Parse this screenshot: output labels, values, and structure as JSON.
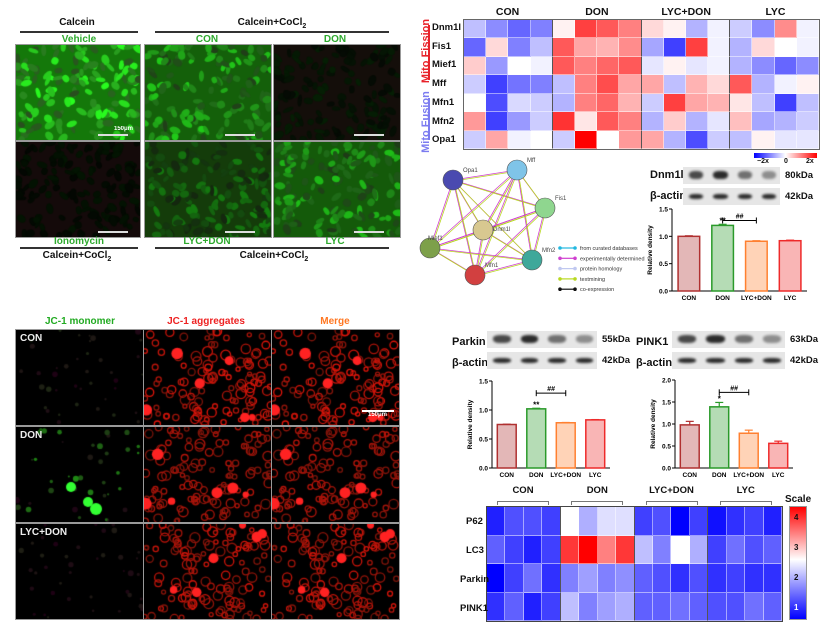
{
  "calcein_panel": {
    "top_left": "Calcein",
    "top_right": "Calcein+CoCl2",
    "bottom_left": "Calcein+CoCl2",
    "bottom_right": "Calcein+CoCl2",
    "images": [
      {
        "label": "Vehicle"
      },
      {
        "label": "CON"
      },
      {
        "label": "DON"
      },
      {
        "label": "Ionomycin"
      },
      {
        "label": "LYC+DON"
      },
      {
        "label": "LYC"
      }
    ],
    "scale_bar": "150μm"
  },
  "jc1_panel": {
    "columns": [
      "JC-1 monomer",
      "JC-1 aggregates",
      "Merge"
    ],
    "rows": [
      "CON",
      "DON",
      "LYC+DON"
    ],
    "scale_bar": "150μm",
    "colors": {
      "monomer": "#22aa22",
      "aggregates": "#ee2222",
      "merge": "#ff7722"
    }
  },
  "mito_heatmap": {
    "groups": [
      "CON",
      "DON",
      "LYC+DON",
      "LYC"
    ],
    "fission_label": "Mito Fission",
    "fusion_label": "Mito Fusion",
    "rows": [
      "Dnm1l",
      "Fis1",
      "Mief1",
      "Mff",
      "Mfn1",
      "Mfn2",
      "Opa1"
    ],
    "scale_labels": [
      "−2x",
      "0",
      "2x"
    ],
    "values": [
      [
        -0.5,
        -0.9,
        -1.2,
        -1.0,
        0.1,
        1.5,
        1.3,
        1.0,
        0.3,
        0.1,
        -0.6,
        -0.1,
        -0.4,
        -0.9,
        0.9,
        -0.1
      ],
      [
        -1.2,
        0.3,
        -1.0,
        -0.5,
        1.3,
        0.7,
        0.6,
        0.9,
        -0.7,
        -1.5,
        1.5,
        -0.1,
        -0.6,
        0.3,
        0.0,
        -0.1
      ],
      [
        0.4,
        -0.8,
        0.0,
        -0.1,
        1.3,
        1.0,
        1.2,
        1.3,
        -0.2,
        0.1,
        -0.2,
        -0.1,
        -0.6,
        -0.9,
        -1.2,
        -0.9
      ],
      [
        -0.4,
        -1.5,
        -1.1,
        -1.0,
        -0.5,
        1.0,
        1.4,
        0.7,
        0.7,
        -0.5,
        0.6,
        0.3,
        1.3,
        -0.6,
        -0.1,
        0.1
      ],
      [
        0.0,
        -1.4,
        -0.3,
        -0.4,
        -0.6,
        1.0,
        1.2,
        0.6,
        -0.4,
        1.5,
        0.7,
        0.6,
        0.2,
        -0.5,
        -1.5,
        -0.5
      ],
      [
        0.8,
        -1.5,
        -0.8,
        -0.4,
        1.6,
        0.2,
        1.3,
        1.0,
        -0.6,
        0.4,
        -0.6,
        -0.2,
        0.5,
        -0.7,
        -0.6,
        -0.4
      ],
      [
        -0.4,
        0.7,
        -0.1,
        0.0,
        -0.4,
        2.0,
        0.0,
        0.8,
        0.7,
        -0.6,
        -1.4,
        -0.4,
        -0.5,
        0.1,
        -0.2,
        -0.2
      ]
    ],
    "colors": {
      "low": "#0000ff",
      "mid": "#ffffff",
      "high": "#ff0000",
      "fission": "#e8222a",
      "fusion": "#7b7bf0"
    }
  },
  "string_network": {
    "nodes": [
      {
        "name": "Opa1",
        "color": "#4a4ab0"
      },
      {
        "name": "Mff",
        "color": "#7fc4e8"
      },
      {
        "name": "Fis1",
        "color": "#8fd68f"
      },
      {
        "name": "Dnm1l",
        "color": "#d8c890"
      },
      {
        "name": "Mief1",
        "color": "#7da04a"
      },
      {
        "name": "Mfn2",
        "color": "#3fa89a"
      },
      {
        "name": "Mfn1",
        "color": "#d24040"
      }
    ],
    "legend": [
      {
        "label": "from curated databases",
        "color": "#22b8e0"
      },
      {
        "label": "experimentally determined",
        "color": "#d040d0"
      },
      {
        "label": "protein homology",
        "color": "#c0c8f0"
      },
      {
        "label": "textmining",
        "color": "#b8d820"
      },
      {
        "label": "co-expression",
        "color": "#111111"
      }
    ]
  },
  "blots": {
    "dnm1l": {
      "label": "Dnm1l",
      "kda": "80kDa",
      "actin": "β-actin",
      "actin_kda": "42kDa"
    },
    "parkin": {
      "label": "Parkin",
      "kda": "55kDa",
      "actin": "β-actin",
      "actin_kda": "42kDa"
    },
    "pink1": {
      "label": "PINK1",
      "kda": "63kDa",
      "actin": "β-actin",
      "actin_kda": "42kDa"
    }
  },
  "chart_data": [
    {
      "type": "bar",
      "id": "dnm1l",
      "categories": [
        "CON",
        "DON",
        "LYC+DON",
        "LYC"
      ],
      "values": [
        1.0,
        1.2,
        0.91,
        0.92
      ],
      "errors": [
        0.01,
        0.02,
        0.01,
        0.01
      ],
      "ylabel": "Relative density",
      "ylim": [
        0,
        1.5
      ],
      "yticks": [
        "0.0",
        "0.5",
        "1.0",
        "1.5"
      ],
      "annotations": {
        "DON": "**",
        "bracket": "##"
      },
      "colors": [
        "#b03030",
        "#2a9a2a",
        "#ff8030",
        "#ee2a2a"
      ]
    },
    {
      "type": "bar",
      "id": "parkin",
      "categories": [
        "CON",
        "DON",
        "LYC+DON",
        "LYC"
      ],
      "values": [
        0.75,
        1.02,
        0.78,
        0.83
      ],
      "errors": [
        0.005,
        0.01,
        0.005,
        0.005
      ],
      "ylabel": "Relative density",
      "ylim": [
        0,
        1.5
      ],
      "yticks": [
        "0.0",
        "0.5",
        "1.0",
        "1.5"
      ],
      "annotations": {
        "DON": "**",
        "bracket": "##"
      },
      "colors": [
        "#b03030",
        "#2a9a2a",
        "#ff8030",
        "#ee2a2a"
      ]
    },
    {
      "type": "bar",
      "id": "pink1",
      "categories": [
        "CON",
        "DON",
        "LYC+DON",
        "LYC"
      ],
      "values": [
        0.98,
        1.39,
        0.79,
        0.56
      ],
      "errors": [
        0.08,
        0.1,
        0.07,
        0.05
      ],
      "ylabel": "Relative density",
      "ylim": [
        0,
        2.0
      ],
      "yticks": [
        "0.0",
        "0.5",
        "1.0",
        "1.5",
        "2.0"
      ],
      "annotations": {
        "DON": "*",
        "bracket": "##"
      },
      "colors": [
        "#b03030",
        "#2a9a2a",
        "#ff8030",
        "#ee2a2a"
      ]
    },
    {
      "type": "heatmap",
      "id": "autophagy",
      "groups": [
        "CON",
        "DON",
        "LYC+DON",
        "LYC"
      ],
      "rows": [
        "P62",
        "LC3",
        "Parkin",
        "PINK1"
      ],
      "scale_title": "Scale",
      "scale_ticks": [
        "4",
        "3",
        "2",
        "1"
      ],
      "range": [
        1,
        4
      ],
      "values": [
        [
          1.2,
          1.5,
          1.5,
          1.4,
          2.6,
          2.1,
          2.4,
          2.4,
          1.4,
          1.5,
          0.9,
          1.4,
          1.1,
          1.3,
          1.4,
          1.2
        ],
        [
          1.6,
          1.4,
          1.2,
          1.4,
          3.7,
          4.1,
          3.3,
          3.7,
          2.2,
          1.8,
          2.6,
          2.1,
          1.4,
          1.7,
          1.5,
          1.6
        ],
        [
          1.0,
          1.4,
          1.7,
          1.3,
          1.8,
          2.0,
          1.8,
          1.9,
          1.6,
          1.5,
          1.3,
          1.5,
          1.3,
          1.4,
          1.3,
          1.3
        ],
        [
          1.3,
          1.6,
          1.2,
          1.4,
          2.2,
          1.8,
          2.0,
          2.1,
          1.6,
          1.6,
          1.7,
          1.6,
          1.5,
          1.5,
          1.7,
          1.6
        ]
      ]
    }
  ]
}
